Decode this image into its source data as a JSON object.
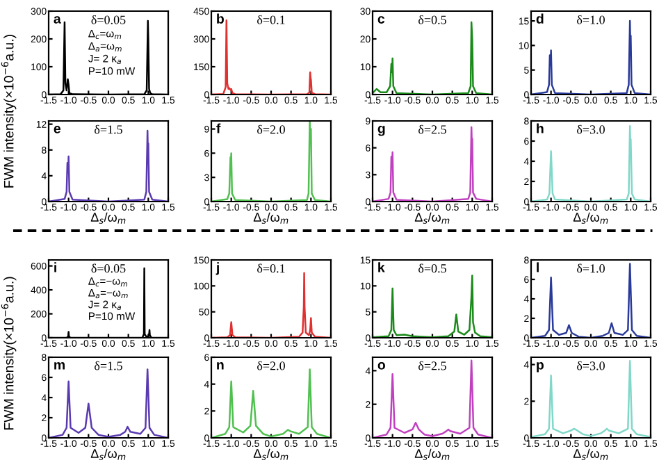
{
  "chart_data": [
    {
      "type": "line",
      "annotations": [
        "a",
        "δ=0.05",
        "Δ$_{c}$=ω$_{m}$",
        "Δ$_{a}$=ω$_{m}$",
        "J= 2 κ$_{a}$",
        "P=10 mW"
      ],
      "ylabel": "FWM intensity(×10$^{−6}$a.u.)",
      "xlim": [
        -1.5,
        1.5
      ],
      "xticks": [
        -1.5,
        {
          "value": -1,
          "label": "-1.0"
        },
        -0.5,
        {
          "value": 0,
          "label": "0.0"
        },
        0.5,
        {
          "value": 1,
          "label": "1.0"
        },
        1.5
      ],
      "ylim": [
        0,
        300
      ],
      "yticks": [
        0,
        100,
        200,
        300
      ],
      "series": [
        {
          "color": "#000000",
          "x": [
            -1.5,
            -1.2,
            -1.13,
            -1.1,
            -1.08,
            -1.05,
            -1.02,
            -1.0,
            -0.98,
            -0.9,
            0,
            0.9,
            0.96,
            0.99,
            1.0,
            1.02,
            1.05,
            1.1,
            1.5
          ],
          "values": [
            0,
            1,
            15,
            260,
            40,
            15,
            55,
            35,
            5,
            1,
            0,
            1,
            15,
            265,
            200,
            20,
            5,
            1,
            0
          ]
        }
      ]
    },
    {
      "type": "line",
      "annotations": [
        "b",
        "δ=0.1"
      ],
      "xlim": [
        -1.5,
        1.5
      ],
      "xticks": [
        -1.5,
        {
          "value": -1,
          "label": "-1.0"
        },
        -0.5,
        {
          "value": 0,
          "label": "0.0"
        },
        0.5,
        {
          "value": 1,
          "label": "1.0"
        },
        1.5
      ],
      "ylim": [
        0,
        450
      ],
      "yticks": [
        0,
        150,
        300,
        450
      ],
      "series": [
        {
          "color": "#e03030",
          "x": [
            -1.5,
            -1.2,
            -1.14,
            -1.12,
            -1.1,
            -1.07,
            -1.05,
            -1.02,
            -1.0,
            -0.97,
            -0.9,
            0,
            0.9,
            0.96,
            0.98,
            0.99,
            1.0,
            1.02,
            1.1,
            1.5
          ],
          "values": [
            0,
            3,
            40,
            400,
            60,
            30,
            35,
            25,
            30,
            8,
            2,
            0,
            2,
            10,
            120,
            90,
            80,
            10,
            2,
            0
          ]
        }
      ]
    },
    {
      "type": "line",
      "annotations": [
        "c",
        "δ=0.5"
      ],
      "xlim": [
        -1.5,
        1.5
      ],
      "xticks": [
        -1.5,
        {
          "value": -1,
          "label": "-1.0"
        },
        -0.5,
        {
          "value": 0,
          "label": "0.0"
        },
        0.5,
        {
          "value": 1,
          "label": "1.0"
        },
        1.5
      ],
      "ylim": [
        0,
        30
      ],
      "yticks": [
        0,
        10,
        20,
        30
      ],
      "series": [
        {
          "color": "#1a8a1a",
          "x": [
            -1.5,
            -1.4,
            -1.3,
            -1.15,
            -1.06,
            -1.03,
            -1.01,
            -1.0,
            -0.98,
            -0.9,
            0,
            0.9,
            0.96,
            0.98,
            1.0,
            1.02,
            1.1,
            1.5
          ],
          "values": [
            0.5,
            2,
            0.8,
            0.8,
            3,
            11,
            8,
            13,
            3,
            0.5,
            0,
            0.5,
            3,
            26,
            20,
            3,
            0.5,
            0
          ]
        }
      ]
    },
    {
      "type": "line",
      "annotations": [
        "d",
        "δ=1.0"
      ],
      "xlim": [
        -1.5,
        1.5
      ],
      "xticks": [
        -1.5,
        {
          "value": -1,
          "label": "-1.0"
        },
        -0.5,
        {
          "value": 0,
          "label": "0.0"
        },
        0.5,
        {
          "value": 1,
          "label": "1.0"
        },
        1.5
      ],
      "ylim": [
        0,
        17
      ],
      "yticks": [
        0,
        5,
        10,
        15
      ],
      "series": [
        {
          "color": "#2a3a9a",
          "x": [
            -1.5,
            -1.1,
            -1.05,
            -1.03,
            -1.01,
            -1.0,
            -0.98,
            -0.9,
            0,
            0.9,
            0.95,
            0.98,
            0.99,
            1.0,
            1.02,
            1.1,
            1.5
          ],
          "values": [
            0,
            0.5,
            2,
            8,
            6,
            9,
            2,
            0.3,
            0,
            0.3,
            2,
            15,
            11,
            12,
            2,
            0.3,
            0
          ]
        }
      ]
    },
    {
      "type": "line",
      "annotations": [
        "e",
        "δ=1.5"
      ],
      "xlabel": "Δ$_{s}$/ω$_{m}$",
      "xlim": [
        -1.5,
        1.5
      ],
      "xticks": [
        -1.5,
        {
          "value": -1,
          "label": "-1.0"
        },
        -0.5,
        {
          "value": 0,
          "label": "0.0"
        },
        0.5,
        {
          "value": 1,
          "label": "1.0"
        },
        1.5
      ],
      "ylim": [
        0,
        12.5
      ],
      "yticks": [
        0,
        4,
        8,
        12
      ],
      "series": [
        {
          "color": "#5a3ab0",
          "x": [
            -1.5,
            -1.1,
            -1.05,
            -1.03,
            -1.01,
            -1.0,
            -0.98,
            -0.9,
            0,
            0.9,
            0.95,
            0.98,
            0.99,
            1.0,
            1.02,
            1.1,
            1.5
          ],
          "values": [
            0,
            0.4,
            1.5,
            6,
            4.5,
            7,
            1.5,
            0.3,
            0,
            0.3,
            1.5,
            11,
            8,
            9,
            1.5,
            0.3,
            0
          ]
        }
      ]
    },
    {
      "type": "line",
      "annotations": [
        "f",
        "δ=2.0"
      ],
      "xlabel": "Δ$_{s}$/ω$_{m}$",
      "xlim": [
        -1.5,
        1.5
      ],
      "xticks": [
        -1.5,
        {
          "value": -1,
          "label": "-1.0"
        },
        -0.5,
        {
          "value": 0,
          "label": "0.0"
        },
        0.5,
        {
          "value": 1,
          "label": "1.0"
        },
        1.5
      ],
      "ylim": [
        0,
        10
      ],
      "yticks": [
        0,
        3,
        6,
        9
      ],
      "series": [
        {
          "color": "#50c050",
          "x": [
            -1.5,
            -1.1,
            -1.05,
            -1.02,
            -1.01,
            -1.0,
            -0.98,
            -0.9,
            0,
            0.9,
            0.94,
            0.97,
            0.98,
            1.0,
            1.02,
            1.1,
            1.5
          ],
          "values": [
            0,
            0.3,
            1,
            5.5,
            4.5,
            6,
            1,
            0.2,
            0,
            0.2,
            1,
            10,
            8,
            9,
            1,
            0.2,
            0
          ]
        }
      ]
    },
    {
      "type": "line",
      "annotations": [
        "g",
        "δ=2.5"
      ],
      "xlabel": "Δ$_{s}$/ω$_{m}$",
      "xlim": [
        -1.5,
        1.5
      ],
      "xticks": [
        -1.5,
        {
          "value": -1,
          "label": "-1.0"
        },
        -0.5,
        {
          "value": 0,
          "label": "0.0"
        },
        0.5,
        {
          "value": 1,
          "label": "1.0"
        },
        1.5
      ],
      "ylim": [
        0,
        9
      ],
      "yticks": [
        0,
        3,
        6,
        9
      ],
      "series": [
        {
          "color": "#c040c0",
          "x": [
            -1.5,
            -1.1,
            -1.05,
            -1.03,
            -1.01,
            -1.0,
            -0.98,
            -0.9,
            0,
            0.9,
            0.95,
            0.98,
            0.99,
            1.0,
            1.02,
            1.1,
            1.5
          ],
          "values": [
            0,
            0.3,
            1,
            5,
            4,
            5.5,
            1,
            0.2,
            0,
            0.3,
            1,
            8.3,
            6.5,
            7,
            1,
            0.3,
            0
          ]
        }
      ]
    },
    {
      "type": "line",
      "annotations": [
        "h",
        "δ=3.0"
      ],
      "xlabel": "Δ$_{s}$/ω$_{m}$",
      "xlim": [
        -1.5,
        1.5
      ],
      "xticks": [
        -1.5,
        {
          "value": -1,
          "label": "-1.0"
        },
        -0.5,
        {
          "value": 0,
          "label": "0.0"
        },
        0.5,
        {
          "value": 1,
          "label": "1.0"
        },
        1.5
      ],
      "ylim": [
        0,
        8
      ],
      "yticks": [
        0,
        2,
        4,
        6,
        8
      ],
      "series": [
        {
          "color": "#80d8c8",
          "x": [
            -1.5,
            -1.1,
            -1.04,
            -1.0,
            -0.96,
            -0.9,
            0,
            0.9,
            0.95,
            0.98,
            0.99,
            1.0,
            1.03,
            1.1,
            1.5
          ],
          "values": [
            0,
            0.2,
            0.8,
            5,
            0.8,
            0.2,
            0,
            0.2,
            0.8,
            7.5,
            6,
            6.2,
            0.8,
            0.2,
            0
          ]
        }
      ]
    },
    {
      "type": "line",
      "annotations": [
        "i",
        "δ=0.05",
        "Δ$_{c}$=−ω$_{m}$",
        "Δ$_{a}$=−ω$_{m}$",
        "J= 2 κ$_{a}$",
        "P=10 mW"
      ],
      "ylabel": "FWM intensity(×10$^{−6}$a.u.)",
      "xlim": [
        -1.5,
        1.5
      ],
      "xticks": [
        -1.5,
        {
          "value": -1,
          "label": "-1.0"
        },
        -0.5,
        {
          "value": 0,
          "label": "0.0"
        },
        0.5,
        {
          "value": 1,
          "label": "1.0"
        },
        1.5
      ],
      "ylim": [
        0,
        650
      ],
      "yticks": [
        0,
        200,
        400,
        600
      ],
      "series": [
        {
          "color": "#000000",
          "x": [
            -1.5,
            -1.05,
            -1.01,
            -1.0,
            -0.99,
            -0.95,
            0,
            0.85,
            0.89,
            0.9,
            0.91,
            0.95,
            1.0,
            1.02,
            1.03,
            1.04,
            1.08,
            1.5
          ],
          "values": [
            0,
            0,
            10,
            50,
            10,
            0,
            0,
            0,
            30,
            580,
            30,
            10,
            10,
            30,
            65,
            20,
            0,
            0
          ]
        }
      ]
    },
    {
      "type": "line",
      "annotations": [
        "j",
        "δ=0.1"
      ],
      "xlim": [
        -1.5,
        1.5
      ],
      "xticks": [
        -1.5,
        {
          "value": -1,
          "label": "-1.0"
        },
        -0.5,
        {
          "value": 0,
          "label": "0.0"
        },
        0.5,
        {
          "value": 1,
          "label": "1.0"
        },
        1.5
      ],
      "ylim": [
        0,
        150
      ],
      "yticks": [
        0,
        50,
        100,
        150
      ],
      "series": [
        {
          "color": "#e03030",
          "x": [
            -1.5,
            -1.1,
            -1.03,
            -1.0,
            -0.97,
            -0.9,
            0,
            0.7,
            0.79,
            0.82,
            0.83,
            0.84,
            0.87,
            0.95,
            0.98,
            1.0,
            1.02,
            1.1,
            1.5
          ],
          "values": [
            0,
            1,
            5,
            30,
            5,
            1,
            0,
            2,
            10,
            60,
            125,
            60,
            10,
            5,
            15,
            38,
            10,
            2,
            0
          ]
        }
      ]
    },
    {
      "type": "line",
      "annotations": [
        "k",
        "δ=0.5"
      ],
      "xlim": [
        -1.5,
        1.5
      ],
      "xticks": [
        -1.5,
        {
          "value": -1,
          "label": "-1.0"
        },
        -0.5,
        {
          "value": 0,
          "label": "0.0"
        },
        0.5,
        {
          "value": 1,
          "label": "1.0"
        },
        1.5
      ],
      "ylim": [
        0,
        15
      ],
      "yticks": [
        0,
        5,
        10,
        15
      ],
      "series": [
        {
          "color": "#1a8a1a",
          "x": [
            -1.5,
            -1.1,
            -1.03,
            -1.0,
            -0.97,
            -0.9,
            -0.7,
            -0.5,
            0,
            0.4,
            0.55,
            0.6,
            0.65,
            0.8,
            0.93,
            0.98,
            1.0,
            1.02,
            1.07,
            1.2,
            1.5
          ],
          "values": [
            0.1,
            0.3,
            1.5,
            9.5,
            1.5,
            0.5,
            0.6,
            0.3,
            0.1,
            0.3,
            1.2,
            4.5,
            1.2,
            0.6,
            1.5,
            8,
            12,
            3,
            1,
            0.3,
            0.1
          ]
        }
      ]
    },
    {
      "type": "line",
      "annotations": [
        "l",
        "δ=1.0"
      ],
      "xlim": [
        -1.5,
        1.5
      ],
      "xticks": [
        -1.5,
        {
          "value": -1,
          "label": "-1.0"
        },
        -0.5,
        {
          "value": 0,
          "label": "0.0"
        },
        0.5,
        {
          "value": 1,
          "label": "1.0"
        },
        1.5
      ],
      "ylim": [
        0,
        8
      ],
      "yticks": [
        0,
        2,
        4,
        6,
        8
      ],
      "series": [
        {
          "color": "#2a3a9a",
          "x": [
            -1.5,
            -1.15,
            -1.05,
            -1.0,
            -0.95,
            -0.8,
            -0.62,
            -0.55,
            -0.48,
            -0.3,
            0,
            0.3,
            0.45,
            0.52,
            0.59,
            0.8,
            0.93,
            0.98,
            1.03,
            1.15,
            1.5
          ],
          "values": [
            0,
            0.2,
            0.8,
            6.2,
            0.8,
            0.3,
            0.5,
            1.3,
            0.5,
            0.1,
            0,
            0.2,
            0.5,
            1.5,
            0.5,
            0.3,
            0.8,
            7.6,
            0.8,
            0.2,
            0
          ]
        }
      ]
    },
    {
      "type": "line",
      "annotations": [
        "m",
        "δ=1.5"
      ],
      "xlabel": "Δ$_{s}$/ω$_{m}$",
      "xlim": [
        -1.5,
        1.5
      ],
      "xticks": [
        -1.5,
        {
          "value": -1,
          "label": "-1.0"
        },
        -0.5,
        {
          "value": 0,
          "label": "0.0"
        },
        0.5,
        {
          "value": 1,
          "label": "1.0"
        },
        1.5
      ],
      "ylim": [
        0,
        8
      ],
      "yticks": [
        0,
        2,
        4,
        6,
        8
      ],
      "series": [
        {
          "color": "#5a3ab0",
          "x": [
            -1.5,
            -1.15,
            -1.05,
            -1.0,
            -0.95,
            -0.75,
            -0.58,
            -0.5,
            -0.42,
            -0.25,
            0,
            0.3,
            0.42,
            0.48,
            0.55,
            0.8,
            0.93,
            0.98,
            1.03,
            1.15,
            1.5
          ],
          "values": [
            0,
            0.3,
            1,
            5.6,
            1,
            0.5,
            1,
            3.4,
            1,
            0.3,
            0.1,
            0.3,
            0.6,
            1.1,
            0.6,
            0.4,
            1,
            6.8,
            1,
            0.3,
            0
          ]
        }
      ]
    },
    {
      "type": "line",
      "annotations": [
        "n",
        "δ=2.0"
      ],
      "xlabel": "Δ$_{s}$/ω$_{m}$",
      "xlim": [
        -1.5,
        1.5
      ],
      "xticks": [
        -1.5,
        {
          "value": -1,
          "label": "-1.0"
        },
        -0.5,
        {
          "value": 0,
          "label": "0.0"
        },
        0.5,
        {
          "value": 1,
          "label": "1.0"
        },
        1.5
      ],
      "ylim": [
        0,
        6
      ],
      "yticks": [
        0,
        2,
        4,
        6
      ],
      "series": [
        {
          "color": "#50c050",
          "x": [
            -1.5,
            -1.15,
            -1.05,
            -1.0,
            -0.95,
            -0.7,
            -0.52,
            -0.45,
            -0.38,
            -0.2,
            0,
            0.3,
            0.38,
            0.42,
            0.48,
            0.7,
            0.92,
            0.97,
            1.02,
            1.15,
            1.5
          ],
          "values": [
            0,
            0.3,
            0.8,
            4.2,
            0.8,
            0.4,
            0.9,
            3.5,
            0.9,
            0.3,
            0.1,
            0.3,
            0.5,
            0.6,
            0.5,
            0.3,
            0.8,
            5.1,
            0.8,
            0.3,
            0
          ]
        }
      ]
    },
    {
      "type": "line",
      "annotations": [
        "o",
        "δ=2.5"
      ],
      "xlabel": "Δ$_{s}$/ω$_{m}$",
      "xlim": [
        -1.5,
        1.5
      ],
      "xticks": [
        -1.5,
        {
          "value": -1,
          "label": "-1.0"
        },
        -0.5,
        {
          "value": 0,
          "label": "0.0"
        },
        0.5,
        {
          "value": 1,
          "label": "1.0"
        },
        1.5
      ],
      "ylim": [
        0,
        4.8
      ],
      "yticks": [
        0,
        2,
        4
      ],
      "series": [
        {
          "color": "#c040c0",
          "x": [
            -1.5,
            -1.15,
            -1.05,
            -1.0,
            -0.95,
            -0.7,
            -0.5,
            -0.42,
            -0.34,
            -0.2,
            0,
            0.25,
            0.35,
            0.4,
            0.45,
            0.7,
            0.93,
            0.98,
            1.03,
            1.15,
            1.5
          ],
          "values": [
            0,
            0.2,
            0.6,
            3.8,
            0.6,
            0.3,
            0.5,
            0.9,
            0.5,
            0.2,
            0.1,
            0.25,
            0.4,
            0.5,
            0.4,
            0.25,
            0.6,
            4.6,
            0.6,
            0.2,
            0
          ]
        }
      ]
    },
    {
      "type": "line",
      "annotations": [
        "p",
        "δ=3.0"
      ],
      "xlabel": "Δ$_{s}$/ω$_{m}$",
      "xlim": [
        -1.5,
        1.5
      ],
      "xticks": [
        -1.5,
        {
          "value": -1,
          "label": "-1.0"
        },
        -0.5,
        {
          "value": 0,
          "label": "0.0"
        },
        0.5,
        {
          "value": 1,
          "label": "1.0"
        },
        1.5
      ],
      "ylim": [
        0,
        4.4
      ],
      "yticks": [
        0,
        2,
        4
      ],
      "series": [
        {
          "color": "#80d8c8",
          "x": [
            -1.5,
            -1.15,
            -1.05,
            -1.0,
            -0.95,
            -0.7,
            -0.5,
            -0.42,
            -0.34,
            -0.2,
            0,
            0.25,
            0.35,
            0.4,
            0.45,
            0.7,
            0.93,
            0.98,
            1.03,
            1.15,
            1.5
          ],
          "values": [
            0.05,
            0.2,
            0.5,
            3.4,
            0.5,
            0.25,
            0.4,
            0.5,
            0.4,
            0.2,
            0.1,
            0.25,
            0.4,
            0.5,
            0.4,
            0.25,
            0.5,
            4.2,
            0.5,
            0.2,
            0.05
          ]
        }
      ]
    }
  ]
}
